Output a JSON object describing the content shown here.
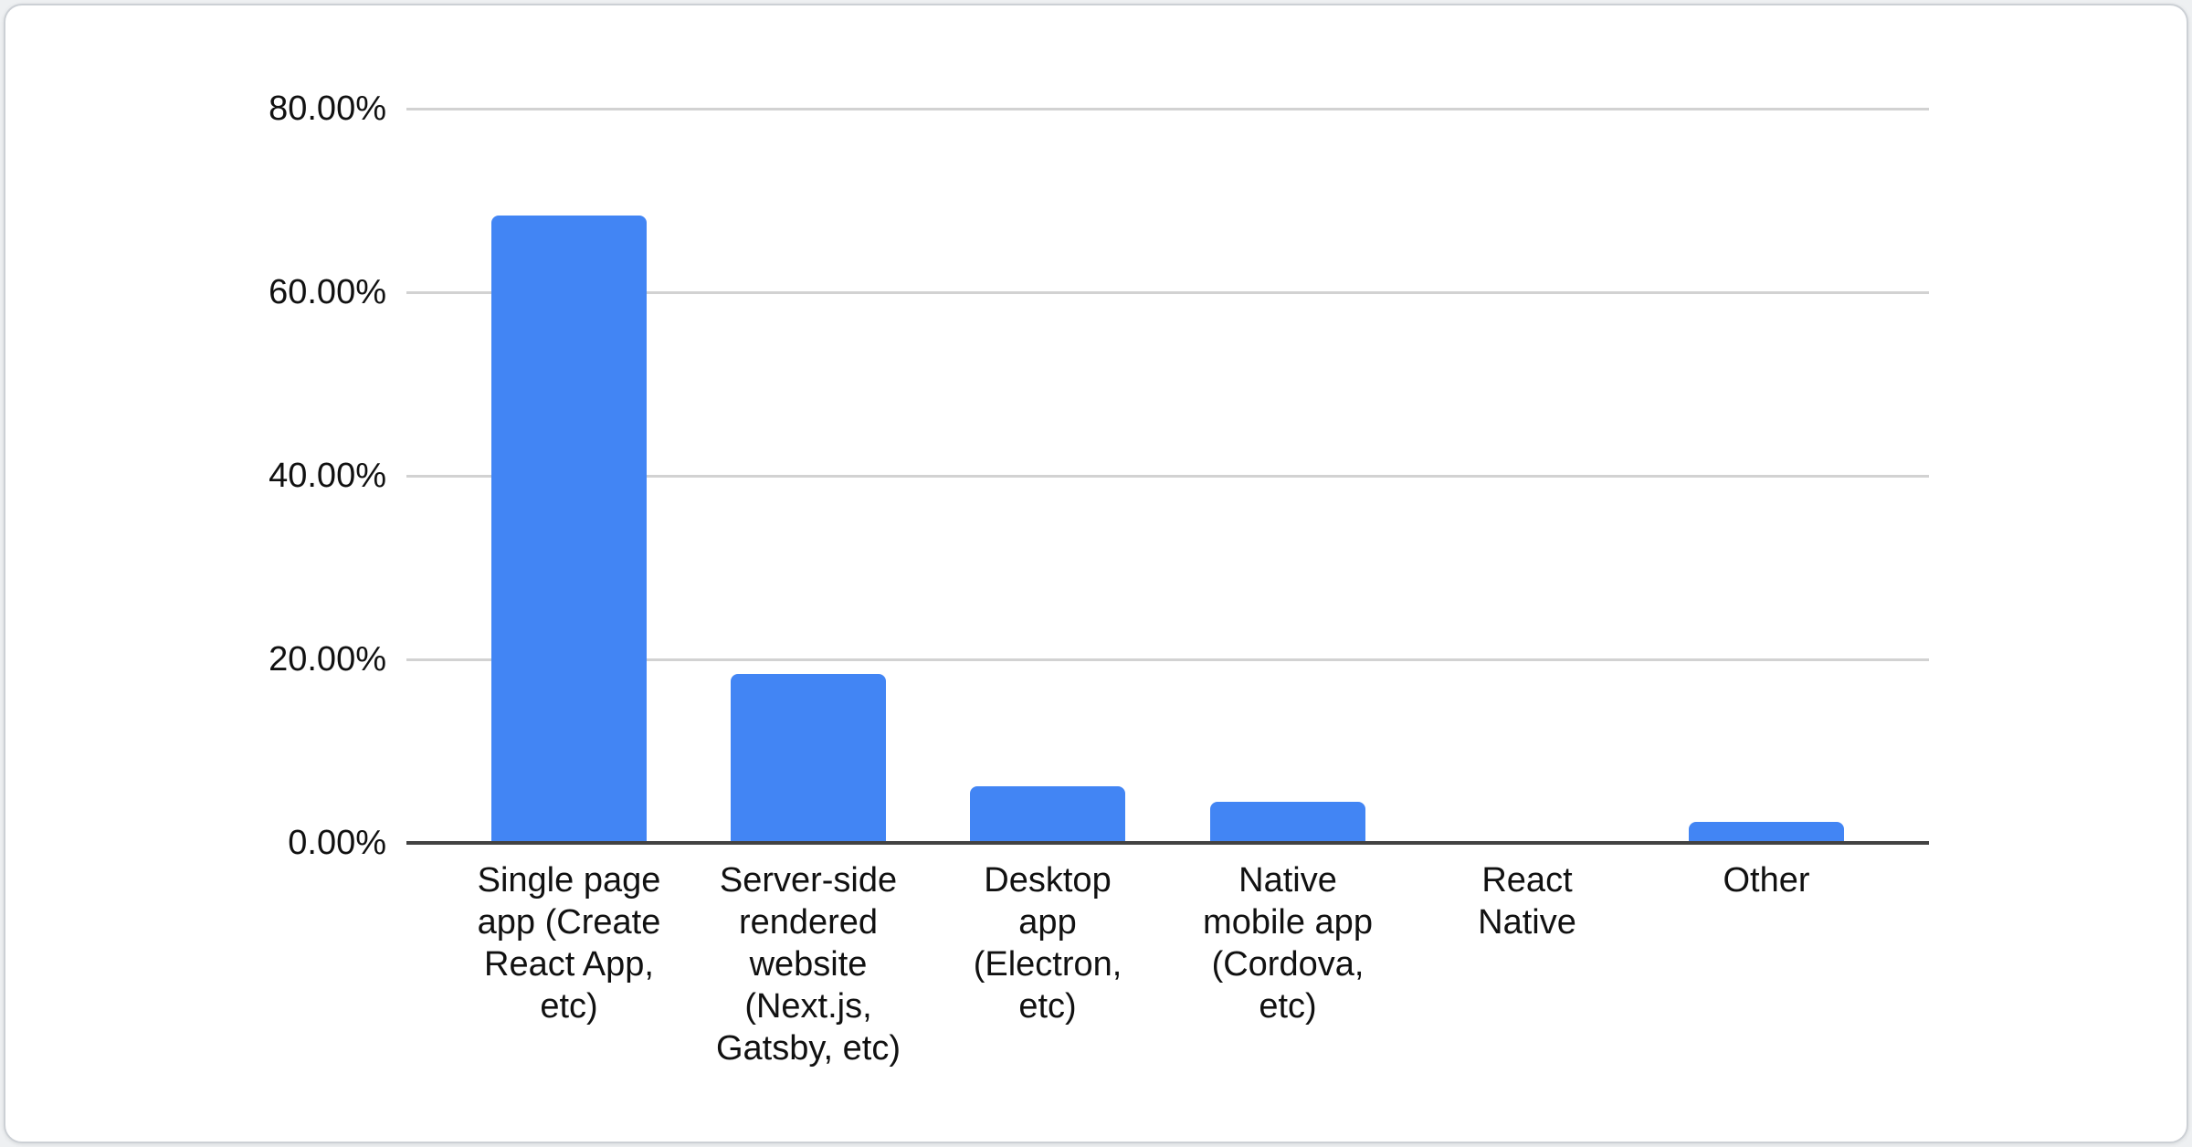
{
  "chart_data": {
    "type": "bar",
    "title": "",
    "xlabel": "",
    "ylabel": "",
    "categories": [
      "Single page app (Create React App, etc)",
      "Server-side rendered website (Next.js, Gatsby, etc)",
      "Desktop app (Electron, etc)",
      "Native mobile app (Cordova, etc)",
      "React Native",
      "Other"
    ],
    "values": [
      68.4,
      18.4,
      6.2,
      4.5,
      0,
      2.3
    ],
    "value_unit": "%",
    "ylim": [
      0,
      80
    ],
    "ytick_values": [
      0,
      20,
      40,
      60,
      80
    ],
    "ytick_labels": [
      "0.00%",
      "20.00%",
      "40.00%",
      "60.00%",
      "80.00%"
    ],
    "grid": true,
    "legend_position": "none",
    "colors": {
      "bar": "#4285F4",
      "gridline": "#d2d2d2",
      "axis_line": "#424242",
      "text": "#111111",
      "card_background": "#ffffff",
      "card_border": "#ccd0d5"
    }
  }
}
